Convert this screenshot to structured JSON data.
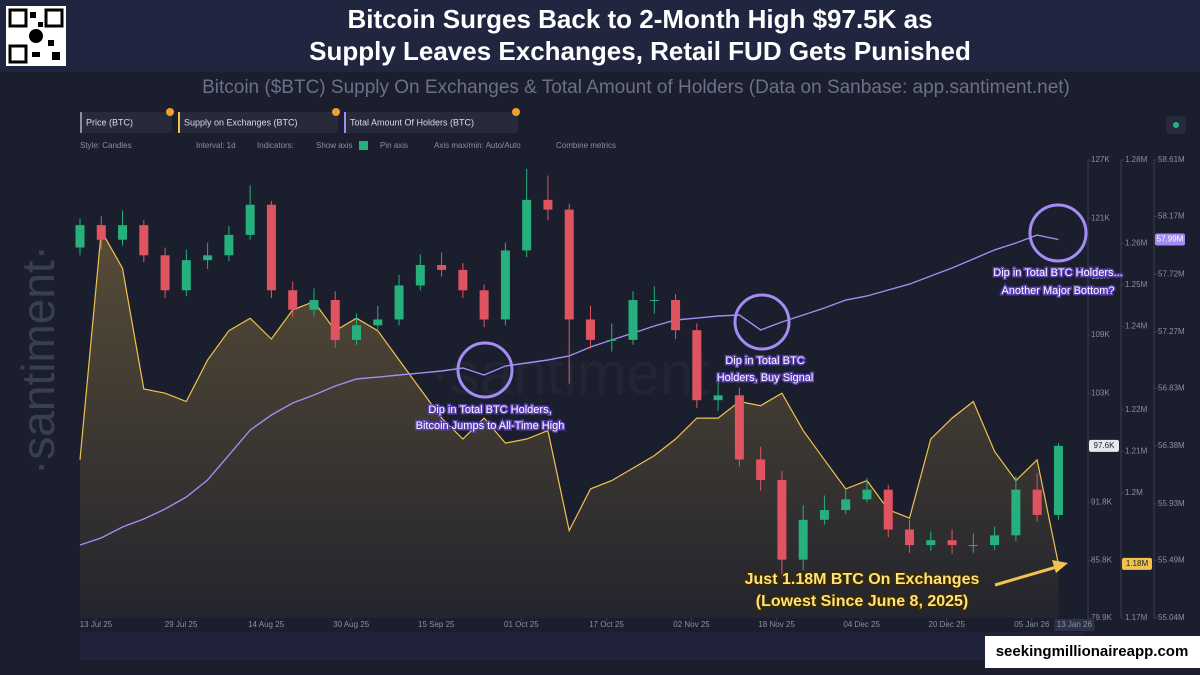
{
  "chart_data": {
    "type": "candlestick",
    "title": [
      "Bitcoin Surges Back to 2-Month High $97.5K as",
      "Supply Leaves Exchanges, Retail FUD Gets Punished"
    ],
    "subtitle": "Bitcoin ($BTC) Supply On Exchanges & Total Amount of Holders (Data on Sanbase: app.santiment.net)",
    "toolbar": [
      "Style: Candles",
      "Interval: 1d",
      "Indicators:",
      "Show axis",
      "Pin axis",
      "Axis max/min: Auto/Auto",
      "Combine metrics"
    ],
    "watermark": "·santiment·",
    "credit": "seekingmillionaireapp.com",
    "x": [
      "2025-07-10",
      "2025-07-14",
      "2025-07-18",
      "2025-07-22",
      "2025-07-26",
      "2025-07-30",
      "2025-08-03",
      "2025-08-07",
      "2025-08-11",
      "2025-08-15",
      "2025-08-19",
      "2025-08-23",
      "2025-08-27",
      "2025-08-31",
      "2025-09-04",
      "2025-09-08",
      "2025-09-12",
      "2025-09-16",
      "2025-09-20",
      "2025-09-24",
      "2025-09-28",
      "2025-10-02",
      "2025-10-06",
      "2025-10-10",
      "2025-10-14",
      "2025-10-18",
      "2025-10-22",
      "2025-10-26",
      "2025-10-30",
      "2025-11-03",
      "2025-11-07",
      "2025-11-11",
      "2025-11-15",
      "2025-11-19",
      "2025-11-23",
      "2025-11-27",
      "2025-12-01",
      "2025-12-05",
      "2025-12-09",
      "2025-12-13",
      "2025-12-17",
      "2025-12-21",
      "2025-12-25",
      "2025-12-29",
      "2026-01-02",
      "2026-01-06",
      "2026-01-10"
    ],
    "xlim": [
      "2025-07-10",
      "2026-01-15"
    ],
    "xticks": [
      {
        "value": "2025-07-13",
        "label": "13 Jul 25"
      },
      {
        "value": "2025-07-29",
        "label": "29 Jul 25"
      },
      {
        "value": "2025-08-14",
        "label": "14 Aug 25"
      },
      {
        "value": "2025-08-30",
        "label": "30 Aug 25"
      },
      {
        "value": "2025-09-15",
        "label": "15 Sep 25"
      },
      {
        "value": "2025-10-01",
        "label": "01 Oct 25"
      },
      {
        "value": "2025-10-17",
        "label": "17 Oct 25"
      },
      {
        "value": "2025-11-02",
        "label": "02 Nov 25"
      },
      {
        "value": "2025-11-18",
        "label": "18 Nov 25"
      },
      {
        "value": "2025-12-04",
        "label": "04 Dec 25"
      },
      {
        "value": "2025-12-20",
        "label": "20 Dec 25"
      },
      {
        "value": "2026-01-05",
        "label": "05 Jan 26"
      },
      {
        "value": "2026-01-13",
        "label": "13 Jan 26"
      }
    ],
    "ylim": [
      79900,
      127000
    ],
    "yticks": [
      {
        "value": 127000,
        "label": "127K"
      },
      {
        "value": 121000,
        "label": "121K"
      },
      {
        "value": 115000,
        "label": "115K"
      },
      {
        "value": 109000,
        "label": "109K"
      },
      {
        "value": 103000,
        "label": "103K"
      },
      {
        "value": 91800,
        "label": "91.8K"
      },
      {
        "value": 85800,
        "label": "85.8K"
      },
      {
        "value": 79900,
        "label": "79.9K"
      }
    ],
    "y2lim": [
      1170000,
      1280000
    ],
    "y2ticks": [
      {
        "value": 1280000,
        "label": "1.28M"
      },
      {
        "value": 1260000,
        "label": "1.26M"
      },
      {
        "value": 1250000,
        "label": "1.25M"
      },
      {
        "value": 1240000,
        "label": "1.24M"
      },
      {
        "value": 1220000,
        "label": "1.22M"
      },
      {
        "value": 1210000,
        "label": "1.21M"
      },
      {
        "value": 1200000,
        "label": "1.2M"
      },
      {
        "value": 1170000,
        "label": "1.17M"
      }
    ],
    "y3lim": [
      55040000,
      58610000
    ],
    "y3ticks": [
      {
        "value": 58610000,
        "label": "58.61M"
      },
      {
        "value": 58170000,
        "label": "58.17M"
      },
      {
        "value": 57720000,
        "label": "57.72M"
      },
      {
        "value": 57270000,
        "label": "57.27M"
      },
      {
        "value": 56830000,
        "label": "56.83M"
      },
      {
        "value": 56380000,
        "label": "56.38M"
      },
      {
        "value": 55930000,
        "label": "55.93M"
      },
      {
        "value": 55490000,
        "label": "55.49M"
      },
      {
        "value": 55040000,
        "label": "55.04M"
      }
    ],
    "grid": false,
    "candles": {
      "name": "Price (BTC)",
      "up_color": "#26b07d",
      "down_color": "#e05462",
      "current_label": "97.6K",
      "open": [
        118000,
        120300,
        118800,
        120300,
        117200,
        113600,
        116700,
        117200,
        119300,
        122400,
        113600,
        111600,
        112600,
        108500,
        110000,
        110600,
        114100,
        116200,
        115700,
        113600,
        110600,
        117700,
        122900,
        121900,
        110600,
        108500,
        108500,
        112600,
        112600,
        109500,
        102300,
        102800,
        96200,
        94100,
        85900,
        90000,
        91000,
        92100,
        93100,
        89000,
        87400,
        87900,
        87400,
        87400,
        88400,
        93100,
        90500
      ],
      "high": [
        121000,
        121200,
        121800,
        120800,
        118000,
        117800,
        118500,
        120200,
        124400,
        122800,
        114500,
        113800,
        113500,
        111200,
        112000,
        115200,
        117300,
        117500,
        116400,
        114200,
        118500,
        126100,
        125400,
        122500,
        112000,
        110200,
        113500,
        114000,
        113200,
        110200,
        104400,
        103600,
        97500,
        95000,
        91500,
        92500,
        93200,
        94300,
        93600,
        90000,
        88800,
        89000,
        88600,
        89300,
        94500,
        94800,
        97900
      ],
      "low": [
        117200,
        117800,
        118200,
        116500,
        112800,
        113000,
        115800,
        116600,
        118800,
        112800,
        110800,
        110900,
        107700,
        108000,
        109600,
        110000,
        113600,
        115000,
        112800,
        109800,
        110000,
        117000,
        120800,
        104000,
        107600,
        107300,
        108000,
        111200,
        108600,
        101500,
        101200,
        95500,
        93000,
        84000,
        84800,
        89500,
        90600,
        91800,
        88200,
        86600,
        86800,
        86500,
        86600,
        86900,
        87800,
        89800,
        90000
      ],
      "close": [
        120300,
        118800,
        120300,
        117200,
        113600,
        116700,
        117200,
        119300,
        122400,
        113600,
        111600,
        112600,
        108500,
        110000,
        110600,
        114100,
        116200,
        115700,
        113600,
        110600,
        117700,
        122900,
        121900,
        110600,
        108500,
        108500,
        112600,
        112600,
        109500,
        102300,
        102800,
        96200,
        94100,
        85900,
        90000,
        91000,
        92100,
        93100,
        89000,
        87400,
        87900,
        87400,
        87400,
        88400,
        93100,
        90500,
        97600
      ]
    },
    "series": [
      {
        "name": "Supply on Exchanges (BTC)",
        "type": "area",
        "axis": "y2",
        "color": "#f2c24f",
        "current_label": "1.18M",
        "values": [
          1208000,
          1263000,
          1254000,
          1225000,
          1224000,
          1222000,
          1232000,
          1239000,
          1242000,
          1237000,
          1244000,
          1246000,
          1239000,
          1242000,
          1239000,
          1232000,
          1225000,
          1218000,
          1213000,
          1218000,
          1212000,
          1213000,
          1215000,
          1191000,
          1201000,
          1203000,
          1206000,
          1209000,
          1213000,
          1218000,
          1218000,
          1222000,
          1221000,
          1224000,
          1215000,
          1208000,
          1201000,
          1203000,
          1196000,
          1194000,
          1213000,
          1218000,
          1222000,
          1210000,
          1203000,
          1208000,
          1183000
        ]
      },
      {
        "name": "Total Amount Of Holders (BTC)",
        "type": "line",
        "axis": "y3",
        "color": "#a48cf2",
        "current_label": "57.99M",
        "values": [
          55609000,
          55664000,
          55749000,
          55812000,
          55890000,
          55983000,
          56116000,
          56310000,
          56505000,
          56622000,
          56716000,
          56778000,
          56848000,
          56903000,
          56918000,
          56934000,
          56949000,
          56965000,
          56989000,
          56934000,
          57004000,
          57028000,
          57051000,
          57082000,
          57152000,
          57207000,
          57261000,
          57316000,
          57363000,
          57378000,
          57394000,
          57402000,
          57285000,
          57347000,
          57402000,
          57456000,
          57519000,
          57550000,
          57597000,
          57643000,
          57706000,
          57768000,
          57838000,
          57909000,
          57963000,
          58025000,
          57990000
        ]
      }
    ],
    "annotations": [
      {
        "lines": [
          "Dip in Total BTC Holders,",
          "Bitcoin Jumps to All-Time High"
        ]
      },
      {
        "lines": [
          "Dip in Total BTC",
          "Holders, Buy Signal"
        ]
      },
      {
        "lines": [
          "Dip in Total BTC Holders...",
          "Another Major Bottom?"
        ]
      },
      {
        "lines": [
          "Just 1.18M BTC On Exchanges",
          "(Lowest Since June 8, 2025)"
        ]
      }
    ]
  }
}
